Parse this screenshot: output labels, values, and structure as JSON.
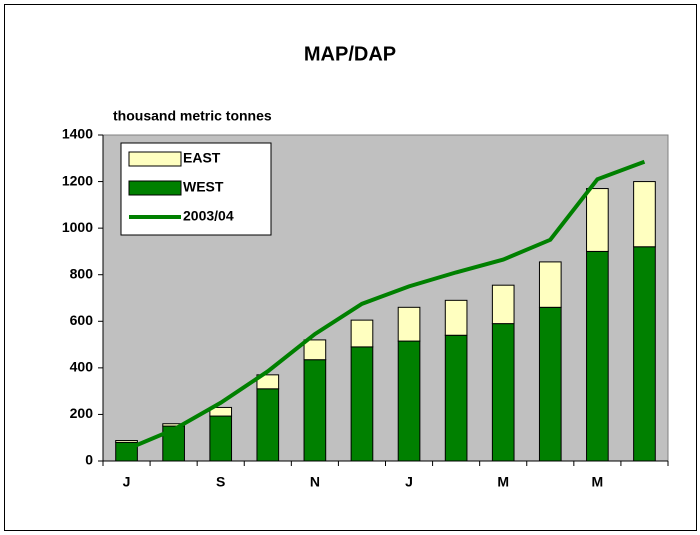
{
  "chart_data": {
    "type": "bar",
    "stacked": true,
    "title": "MAP/DAP",
    "y_label": "thousand metric tonnes",
    "categories": [
      "J",
      null,
      "S",
      null,
      "N",
      null,
      "J",
      null,
      "M",
      null,
      "M",
      null
    ],
    "series": [
      {
        "name": "WEST",
        "color": "#008000",
        "values": [
          80,
          150,
          193,
          310,
          435,
          490,
          515,
          540,
          590,
          660,
          900,
          920
        ]
      },
      {
        "name": "EAST",
        "color": "#ffffc0",
        "values": [
          8,
          10,
          37,
          60,
          85,
          115,
          145,
          150,
          165,
          195,
          270,
          280
        ]
      },
      {
        "name": "2003/04",
        "type": "line",
        "color": "#008000",
        "values": [
          50,
          135,
          250,
          385,
          545,
          675,
          750,
          810,
          865,
          950,
          1210,
          1285
        ]
      }
    ],
    "ylim": [
      0,
      1400
    ],
    "yticks": [
      0,
      200,
      400,
      600,
      800,
      1000,
      1200,
      1400
    ],
    "plot_background": "#c0c0c0",
    "legend": "upper left"
  }
}
